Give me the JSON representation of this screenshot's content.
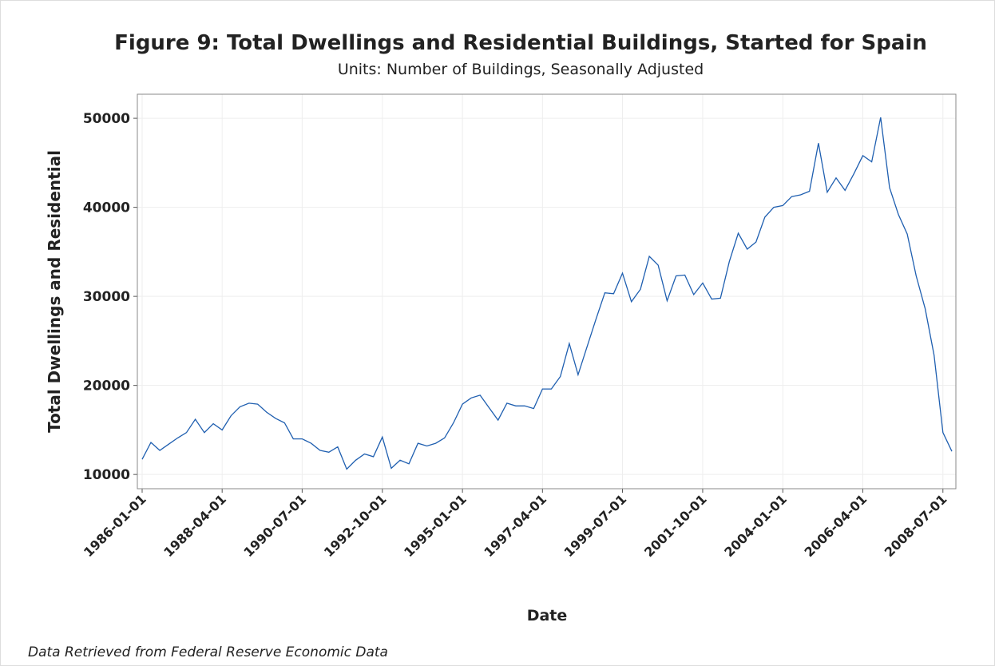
{
  "chart_data": {
    "type": "line",
    "title": "Figure 9: Total Dwellings and Residential Buildings, Started for Spain",
    "subtitle": "Units:  Number of Buildings, Seasonally Adjusted",
    "x_label": "Date",
    "y_label": "Total Dwellings and Residential",
    "source": "Data Retrieved from Federal Reserve Economic Data",
    "color": "#1f5fb0",
    "grid": true,
    "x": [
      "1986-01-01",
      "1986-04-01",
      "1986-07-01",
      "1986-10-01",
      "1987-01-01",
      "1987-04-01",
      "1987-07-01",
      "1987-10-01",
      "1988-01-01",
      "1988-04-01",
      "1988-07-01",
      "1988-10-01",
      "1989-01-01",
      "1989-04-01",
      "1989-07-01",
      "1989-10-01",
      "1990-01-01",
      "1990-04-01",
      "1990-07-01",
      "1990-10-01",
      "1991-01-01",
      "1991-04-01",
      "1991-07-01",
      "1991-10-01",
      "1992-01-01",
      "1992-04-01",
      "1992-07-01",
      "1992-10-01",
      "1993-01-01",
      "1993-04-01",
      "1993-07-01",
      "1993-10-01",
      "1994-01-01",
      "1994-04-01",
      "1994-07-01",
      "1994-10-01",
      "1995-01-01",
      "1995-04-01",
      "1995-07-01",
      "1995-10-01",
      "1996-01-01",
      "1996-04-01",
      "1996-07-01",
      "1996-10-01",
      "1997-01-01",
      "1997-04-01",
      "1997-07-01",
      "1997-10-01",
      "1998-01-01",
      "1998-04-01",
      "1998-07-01",
      "1998-10-01",
      "1999-01-01",
      "1999-04-01",
      "1999-07-01",
      "1999-10-01",
      "2000-01-01",
      "2000-04-01",
      "2000-07-01",
      "2000-10-01",
      "2001-01-01",
      "2001-04-01",
      "2001-07-01",
      "2001-10-01",
      "2002-01-01",
      "2002-04-01",
      "2002-07-01",
      "2002-10-01",
      "2003-01-01",
      "2003-04-01",
      "2003-07-01",
      "2003-10-01",
      "2004-01-01",
      "2004-04-01",
      "2004-07-01",
      "2004-10-01",
      "2005-01-01",
      "2005-04-01",
      "2005-07-01",
      "2005-10-01",
      "2006-01-01",
      "2006-04-01",
      "2006-07-01",
      "2006-10-01",
      "2007-01-01",
      "2007-04-01",
      "2007-07-01",
      "2007-10-01",
      "2008-01-01",
      "2008-04-01",
      "2008-07-01",
      "2008-10-01"
    ],
    "values": [
      11700,
      13600,
      12700,
      13400,
      14100,
      14700,
      16200,
      14700,
      15700,
      15000,
      16600,
      17600,
      18000,
      17900,
      17000,
      16300,
      15800,
      14000,
      14000,
      13500,
      12700,
      12500,
      13100,
      10600,
      11600,
      12300,
      12000,
      14200,
      10700,
      11600,
      11200,
      13500,
      13200,
      13500,
      14100,
      15800,
      17900,
      18600,
      18900,
      17500,
      16100,
      18000,
      17700,
      17700,
      17400,
      19600,
      19600,
      21000,
      24700,
      21200,
      24300,
      27400,
      30400,
      30300,
      32600,
      29400,
      30800,
      34500,
      33500,
      29500,
      32300,
      32400,
      30200,
      31500,
      29700,
      29800,
      33900,
      37100,
      35300,
      36100,
      38900,
      40000,
      40200,
      41200,
      41400,
      41800,
      47200,
      41700,
      43300,
      41900,
      43800,
      45800,
      45100,
      50100,
      42200,
      39200,
      37000,
      32300,
      28600,
      23400,
      14700,
      12600
    ],
    "ylim": [
      8400,
      52700
    ],
    "yticks": [
      10000,
      20000,
      30000,
      40000,
      50000
    ],
    "xticks": [
      "1986-01-01",
      "1988-04-01",
      "1990-07-01",
      "1992-10-01",
      "1995-01-01",
      "1997-04-01",
      "1999-07-01",
      "2001-10-01",
      "2004-01-01",
      "2006-04-01",
      "2008-07-01"
    ]
  }
}
